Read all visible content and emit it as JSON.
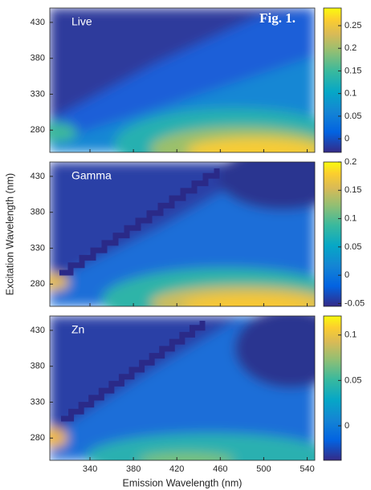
{
  "chart_data": [
    {
      "type": "heatmap",
      "title": "Live",
      "annotation": "Fig. 1.",
      "ylim": [
        249,
        450
      ],
      "yticks": [
        280,
        330,
        380,
        430
      ],
      "clim": [
        -0.03,
        0.289
      ],
      "cticks": [
        0,
        0.05,
        0.1,
        0.15,
        0.2,
        0.25
      ]
    },
    {
      "type": "heatmap",
      "title": "Gamma",
      "ylabel": "Excitation Wavelength (nm)",
      "ylim": [
        249,
        450
      ],
      "yticks": [
        280,
        330,
        380,
        430
      ],
      "clim": [
        -0.055,
        0.2
      ],
      "cticks": [
        -0.05,
        0,
        0.05,
        0.1,
        0.15,
        0.2
      ]
    },
    {
      "type": "heatmap",
      "title": "Zn",
      "xlabel": "Emission Wavelength (nm)",
      "xlim": [
        303,
        547
      ],
      "xticks": [
        340,
        380,
        420,
        460,
        500,
        540
      ],
      "ylim": [
        249,
        450
      ],
      "yticks": [
        280,
        330,
        380,
        430
      ],
      "clim": [
        -0.038,
        0.121
      ],
      "cticks": [
        0,
        0.05,
        0.1
      ]
    }
  ]
}
